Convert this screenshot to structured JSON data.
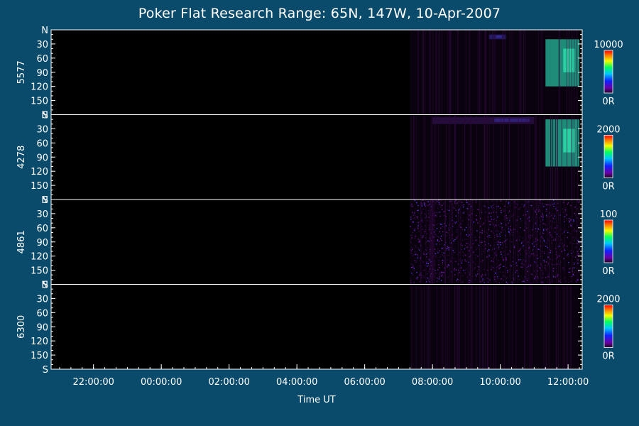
{
  "chart_data": {
    "type": "heatmap",
    "title": "Poker Flat Research Range: 65N, 147W, 10-Apr-2007",
    "xlabel": "Time UT",
    "x_ticks": [
      "22:00:00",
      "00:00:00",
      "02:00:00",
      "04:00:00",
      "06:00:00",
      "08:00:00",
      "10:00:00",
      "12:00:00"
    ],
    "y_ticks": [
      "N",
      "30",
      "60",
      "90",
      "120",
      "150",
      "S"
    ],
    "panels": [
      {
        "wavelength": "5577",
        "scale_max": "10000",
        "scale_min": "0R",
        "data_start": "07:20:00",
        "data_end": "12:20:00",
        "features": [
          {
            "start": "11:20:00",
            "end": "12:20:00",
            "elevation": [
              20,
              120
            ],
            "level": 0.7
          },
          {
            "start": "09:40:00",
            "end": "10:10:00",
            "elevation": [
              10,
              20
            ],
            "level": 0.4
          }
        ]
      },
      {
        "wavelength": "4278",
        "scale_max": "2000",
        "scale_min": "0R",
        "data_start": "07:20:00",
        "data_end": "12:20:00",
        "features": [
          {
            "start": "11:20:00",
            "end": "12:20:00",
            "elevation": [
              10,
              110
            ],
            "level": 0.75
          },
          {
            "start": "08:00:00",
            "end": "11:00:00",
            "elevation": [
              5,
              20
            ],
            "level": 0.25
          }
        ]
      },
      {
        "wavelength": "4861",
        "scale_max": "100",
        "scale_min": "0R",
        "data_start": "07:20:00",
        "data_end": "12:20:00",
        "features": [
          {
            "start": "07:20:00",
            "end": "12:20:00",
            "elevation": [
              0,
              180
            ],
            "level": 0.35,
            "noise": true
          }
        ]
      },
      {
        "wavelength": "6300",
        "scale_max": "2000",
        "scale_min": "0R",
        "data_start": "07:20:00",
        "data_end": "12:20:00",
        "features": []
      }
    ],
    "colorbar": "rainbow (purple-blue-cyan-green-yellow-red)",
    "colors": {
      "background": "#0a4a6b",
      "plot_area": "#000000",
      "axes": "#ffffff"
    }
  }
}
